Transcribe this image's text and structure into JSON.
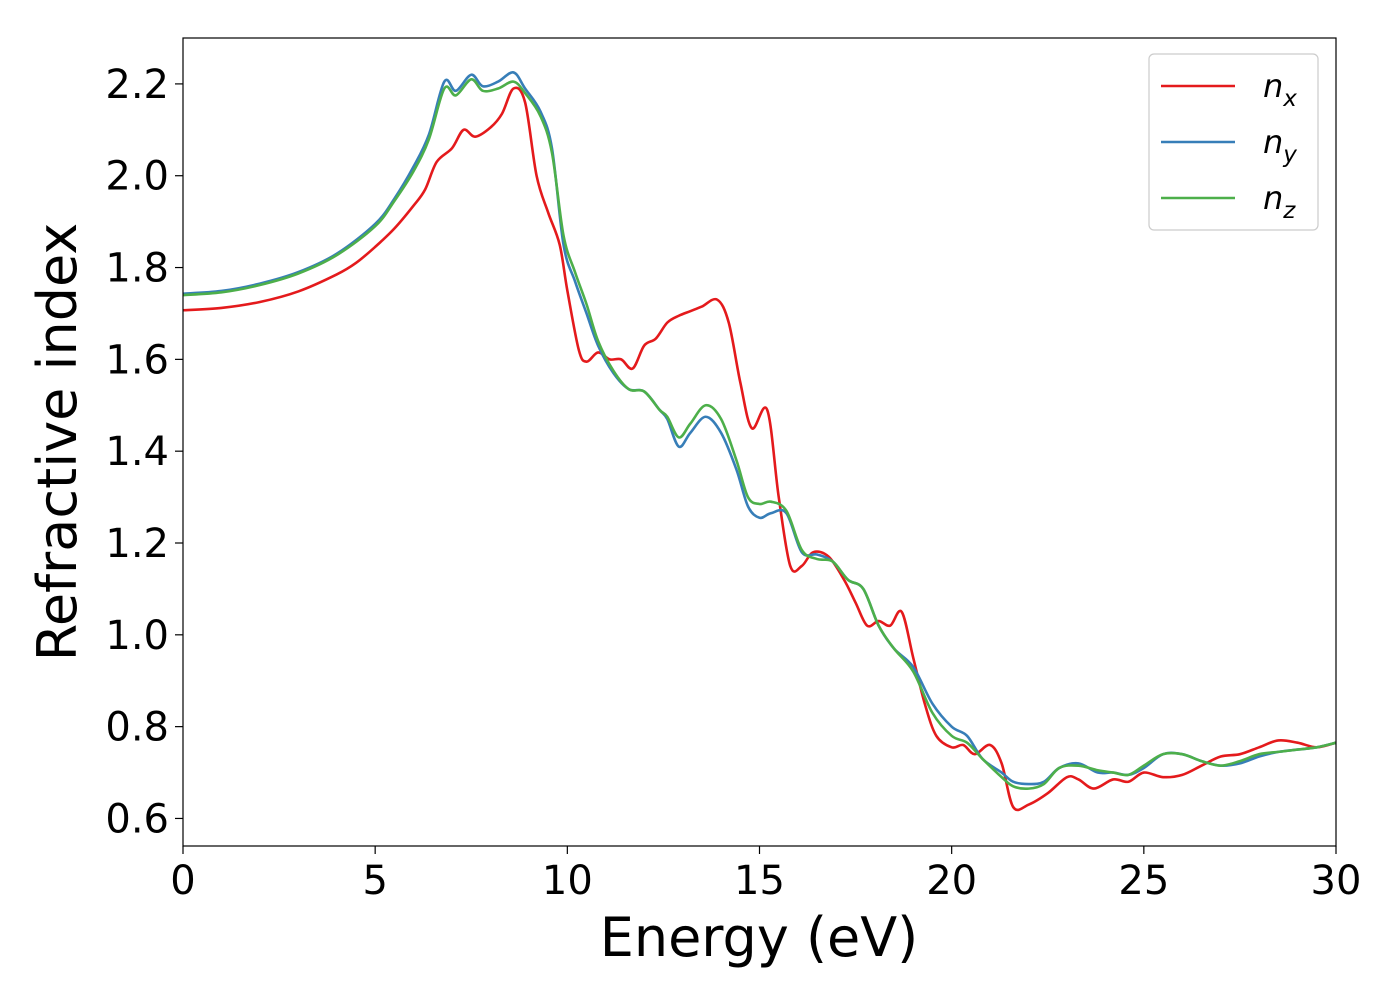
{
  "chart_data": {
    "type": "line",
    "xlabel": "Energy (eV)",
    "ylabel": "Refractive index",
    "xlim": [
      0,
      30
    ],
    "ylim": [
      0.54,
      2.3
    ],
    "xticks": [
      0,
      5,
      10,
      15,
      20,
      25,
      30
    ],
    "xtick_labels": [
      "0",
      "5",
      "10",
      "15",
      "20",
      "25",
      "30"
    ],
    "yticks": [
      0.6,
      0.8,
      1.0,
      1.2,
      1.4,
      1.6,
      1.8,
      2.0,
      2.2
    ],
    "ytick_labels": [
      "0.6",
      "0.8",
      "1.0",
      "1.2",
      "1.4",
      "1.6",
      "1.8",
      "2.0",
      "2.2"
    ],
    "grid": false,
    "legend_position": "top-right",
    "series": [
      {
        "name": "n",
        "subscript": "x",
        "color": "#e41a1c",
        "points": [
          [
            0,
            1.707
          ],
          [
            1,
            1.712
          ],
          [
            2,
            1.725
          ],
          [
            3,
            1.748
          ],
          [
            4,
            1.785
          ],
          [
            4.5,
            1.81
          ],
          [
            5,
            1.845
          ],
          [
            5.5,
            1.885
          ],
          [
            6,
            1.935
          ],
          [
            6.3,
            1.97
          ],
          [
            6.6,
            2.03
          ],
          [
            7,
            2.06
          ],
          [
            7.3,
            2.1
          ],
          [
            7.6,
            2.085
          ],
          [
            8,
            2.105
          ],
          [
            8.3,
            2.135
          ],
          [
            8.6,
            2.19
          ],
          [
            8.9,
            2.16
          ],
          [
            9.2,
            2.0
          ],
          [
            9.5,
            1.92
          ],
          [
            9.8,
            1.85
          ],
          [
            10,
            1.75
          ],
          [
            10.3,
            1.62
          ],
          [
            10.5,
            1.595
          ],
          [
            10.8,
            1.615
          ],
          [
            11.1,
            1.6
          ],
          [
            11.4,
            1.6
          ],
          [
            11.7,
            1.58
          ],
          [
            12,
            1.63
          ],
          [
            12.3,
            1.645
          ],
          [
            12.6,
            1.68
          ],
          [
            12.9,
            1.695
          ],
          [
            13.2,
            1.705
          ],
          [
            13.5,
            1.715
          ],
          [
            13.9,
            1.73
          ],
          [
            14.2,
            1.68
          ],
          [
            14.5,
            1.55
          ],
          [
            14.8,
            1.45
          ],
          [
            15.2,
            1.49
          ],
          [
            15.5,
            1.3
          ],
          [
            15.8,
            1.15
          ],
          [
            16.1,
            1.15
          ],
          [
            16.4,
            1.18
          ],
          [
            16.8,
            1.17
          ],
          [
            17.2,
            1.12
          ],
          [
            17.5,
            1.07
          ],
          [
            17.8,
            1.02
          ],
          [
            18.1,
            1.03
          ],
          [
            18.4,
            1.02
          ],
          [
            18.7,
            1.05
          ],
          [
            19,
            0.95
          ],
          [
            19.3,
            0.85
          ],
          [
            19.6,
            0.78
          ],
          [
            20,
            0.755
          ],
          [
            20.3,
            0.76
          ],
          [
            20.6,
            0.74
          ],
          [
            21,
            0.76
          ],
          [
            21.3,
            0.72
          ],
          [
            21.6,
            0.625
          ],
          [
            22,
            0.63
          ],
          [
            22.5,
            0.655
          ],
          [
            23,
            0.69
          ],
          [
            23.3,
            0.685
          ],
          [
            23.7,
            0.665
          ],
          [
            24.2,
            0.685
          ],
          [
            24.6,
            0.68
          ],
          [
            25,
            0.7
          ],
          [
            25.5,
            0.69
          ],
          [
            26,
            0.695
          ],
          [
            26.5,
            0.715
          ],
          [
            27,
            0.735
          ],
          [
            27.5,
            0.74
          ],
          [
            28,
            0.755
          ],
          [
            28.5,
            0.77
          ],
          [
            29,
            0.765
          ],
          [
            29.5,
            0.755
          ],
          [
            30,
            0.765
          ]
        ]
      },
      {
        "name": "n",
        "subscript": "y",
        "color": "#377eb8",
        "points": [
          [
            0,
            1.743
          ],
          [
            1,
            1.749
          ],
          [
            2,
            1.765
          ],
          [
            3,
            1.79
          ],
          [
            4,
            1.83
          ],
          [
            5,
            1.895
          ],
          [
            5.5,
            1.95
          ],
          [
            6,
            2.02
          ],
          [
            6.4,
            2.09
          ],
          [
            6.8,
            2.205
          ],
          [
            7.1,
            2.185
          ],
          [
            7.5,
            2.22
          ],
          [
            7.8,
            2.195
          ],
          [
            8.2,
            2.205
          ],
          [
            8.6,
            2.225
          ],
          [
            8.9,
            2.19
          ],
          [
            9.3,
            2.14
          ],
          [
            9.6,
            2.06
          ],
          [
            9.9,
            1.85
          ],
          [
            10.2,
            1.77
          ],
          [
            10.5,
            1.7
          ],
          [
            10.8,
            1.63
          ],
          [
            11.2,
            1.57
          ],
          [
            11.6,
            1.535
          ],
          [
            12,
            1.53
          ],
          [
            12.4,
            1.49
          ],
          [
            12.6,
            1.47
          ],
          [
            12.9,
            1.41
          ],
          [
            13.2,
            1.44
          ],
          [
            13.6,
            1.475
          ],
          [
            14,
            1.44
          ],
          [
            14.4,
            1.36
          ],
          [
            14.7,
            1.28
          ],
          [
            15,
            1.255
          ],
          [
            15.3,
            1.265
          ],
          [
            15.7,
            1.265
          ],
          [
            16.1,
            1.18
          ],
          [
            16.5,
            1.175
          ],
          [
            16.9,
            1.16
          ],
          [
            17.3,
            1.12
          ],
          [
            17.7,
            1.1
          ],
          [
            18.1,
            1.02
          ],
          [
            18.5,
            0.97
          ],
          [
            19,
            0.93
          ],
          [
            19.5,
            0.85
          ],
          [
            20,
            0.8
          ],
          [
            20.4,
            0.78
          ],
          [
            20.8,
            0.73
          ],
          [
            21.3,
            0.7
          ],
          [
            21.6,
            0.68
          ],
          [
            22,
            0.675
          ],
          [
            22.4,
            0.68
          ],
          [
            22.8,
            0.71
          ],
          [
            23.3,
            0.72
          ],
          [
            23.8,
            0.7
          ],
          [
            24.2,
            0.7
          ],
          [
            24.6,
            0.695
          ],
          [
            25,
            0.71
          ],
          [
            25.5,
            0.74
          ],
          [
            26,
            0.74
          ],
          [
            26.5,
            0.725
          ],
          [
            27,
            0.715
          ],
          [
            27.5,
            0.72
          ],
          [
            28,
            0.735
          ],
          [
            28.5,
            0.745
          ],
          [
            29,
            0.75
          ],
          [
            29.5,
            0.755
          ],
          [
            30,
            0.765
          ]
        ]
      },
      {
        "name": "n",
        "subscript": "z",
        "color": "#4daf4a",
        "points": [
          [
            0,
            1.74
          ],
          [
            1,
            1.746
          ],
          [
            2,
            1.762
          ],
          [
            3,
            1.787
          ],
          [
            4,
            1.827
          ],
          [
            5,
            1.89
          ],
          [
            5.5,
            1.945
          ],
          [
            6,
            2.01
          ],
          [
            6.4,
            2.08
          ],
          [
            6.8,
            2.19
          ],
          [
            7.1,
            2.175
          ],
          [
            7.5,
            2.21
          ],
          [
            7.8,
            2.185
          ],
          [
            8.2,
            2.19
          ],
          [
            8.6,
            2.205
          ],
          [
            8.9,
            2.18
          ],
          [
            9.3,
            2.13
          ],
          [
            9.6,
            2.05
          ],
          [
            9.9,
            1.87
          ],
          [
            10.2,
            1.79
          ],
          [
            10.5,
            1.72
          ],
          [
            10.8,
            1.64
          ],
          [
            11.2,
            1.575
          ],
          [
            11.6,
            1.535
          ],
          [
            12,
            1.53
          ],
          [
            12.4,
            1.49
          ],
          [
            12.6,
            1.475
          ],
          [
            12.9,
            1.43
          ],
          [
            13.2,
            1.46
          ],
          [
            13.6,
            1.5
          ],
          [
            14,
            1.47
          ],
          [
            14.4,
            1.38
          ],
          [
            14.7,
            1.3
          ],
          [
            15,
            1.285
          ],
          [
            15.3,
            1.29
          ],
          [
            15.7,
            1.27
          ],
          [
            16.1,
            1.185
          ],
          [
            16.5,
            1.165
          ],
          [
            16.9,
            1.16
          ],
          [
            17.3,
            1.12
          ],
          [
            17.7,
            1.1
          ],
          [
            18.1,
            1.02
          ],
          [
            18.5,
            0.97
          ],
          [
            19,
            0.92
          ],
          [
            19.5,
            0.83
          ],
          [
            20,
            0.78
          ],
          [
            20.4,
            0.765
          ],
          [
            20.8,
            0.73
          ],
          [
            21.3,
            0.69
          ],
          [
            21.6,
            0.67
          ],
          [
            22,
            0.665
          ],
          [
            22.4,
            0.675
          ],
          [
            22.8,
            0.71
          ],
          [
            23.3,
            0.715
          ],
          [
            23.8,
            0.705
          ],
          [
            24.2,
            0.7
          ],
          [
            24.6,
            0.695
          ],
          [
            25,
            0.715
          ],
          [
            25.5,
            0.74
          ],
          [
            26,
            0.74
          ],
          [
            26.5,
            0.725
          ],
          [
            27,
            0.715
          ],
          [
            27.5,
            0.725
          ],
          [
            28,
            0.74
          ],
          [
            28.5,
            0.745
          ],
          [
            29,
            0.75
          ],
          [
            29.5,
            0.755
          ],
          [
            30,
            0.765
          ]
        ]
      }
    ]
  }
}
